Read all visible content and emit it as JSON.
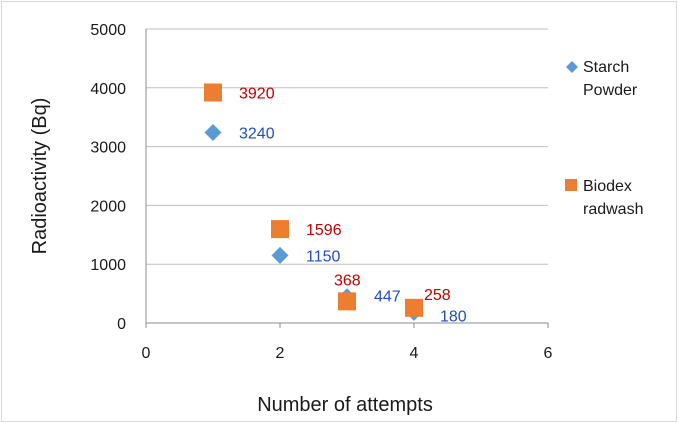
{
  "chart_data": {
    "type": "scatter",
    "title": "",
    "xlabel": "Number of attempts",
    "ylabel": "Radioactivity (Bq)",
    "xlim": [
      0,
      6
    ],
    "ylim": [
      0,
      5000
    ],
    "x_ticks": [
      0,
      2,
      4,
      6
    ],
    "y_ticks": [
      0,
      1000,
      2000,
      3000,
      4000,
      5000
    ],
    "grid": "horizontal",
    "legend_position": "right",
    "series": [
      {
        "name": "Starch Powder",
        "legend_lines": [
          "Starch",
          "Powder"
        ],
        "marker": "diamond",
        "color": "#5b9bd5",
        "label_color": "#1f4fbf",
        "points": [
          {
            "x": 1,
            "y": 3240,
            "label": "3240"
          },
          {
            "x": 2,
            "y": 1150,
            "label": "1150"
          },
          {
            "x": 3,
            "y": 447,
            "label": "447"
          },
          {
            "x": 4,
            "y": 180,
            "label": "180"
          }
        ]
      },
      {
        "name": "Biodex radwash",
        "legend_lines": [
          "Biodex",
          "radwash"
        ],
        "marker": "square",
        "color": "#ed7d31",
        "label_color": "#c00000",
        "points": [
          {
            "x": 1,
            "y": 3920,
            "label": "3920"
          },
          {
            "x": 2,
            "y": 1596,
            "label": "1596"
          },
          {
            "x": 3,
            "y": 368,
            "label": "368"
          },
          {
            "x": 4,
            "y": 258,
            "label": "258"
          }
        ]
      }
    ]
  }
}
